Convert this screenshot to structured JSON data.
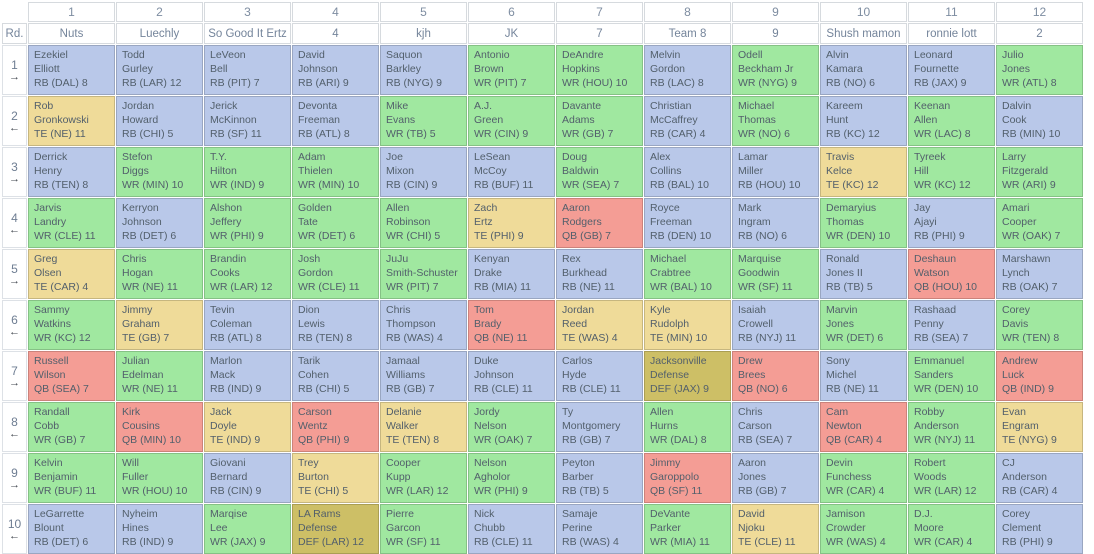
{
  "draft_board": {
    "corner_label": "Rd.",
    "direction_icons": {
      "right": "→",
      "left": "←"
    },
    "position_colors": {
      "RB": "#b9c8e9",
      "WR": "#a0e8a0",
      "TE": "#efdb99",
      "QB": "#f49d95",
      "DEF": "#cdbf66"
    },
    "teams": [
      {
        "slot": "1",
        "name": "Nuts"
      },
      {
        "slot": "2",
        "name": "Luechly"
      },
      {
        "slot": "3",
        "name": "So Good It Ertz"
      },
      {
        "slot": "4",
        "name": "4"
      },
      {
        "slot": "5",
        "name": "kjh"
      },
      {
        "slot": "6",
        "name": "JK"
      },
      {
        "slot": "7",
        "name": "7"
      },
      {
        "slot": "8",
        "name": "Team 8"
      },
      {
        "slot": "9",
        "name": "9"
      },
      {
        "slot": "10",
        "name": "Shush mamon"
      },
      {
        "slot": "11",
        "name": "ronnie lott"
      },
      {
        "slot": "12",
        "name": "2"
      }
    ],
    "rounds": [
      {
        "round": "1",
        "direction": "right",
        "picks": [
          {
            "line1": "Ezekiel",
            "line2": "Elliott",
            "meta": "RB (DAL) 8",
            "pos": "RB"
          },
          {
            "line1": "Todd",
            "line2": "Gurley",
            "meta": "RB (LAR) 12",
            "pos": "RB"
          },
          {
            "line1": "LeVeon",
            "line2": "Bell",
            "meta": "RB (PIT) 7",
            "pos": "RB"
          },
          {
            "line1": "David",
            "line2": "Johnson",
            "meta": "RB (ARI) 9",
            "pos": "RB"
          },
          {
            "line1": "Saquon",
            "line2": "Barkley",
            "meta": "RB (NYG) 9",
            "pos": "RB"
          },
          {
            "line1": "Antonio",
            "line2": "Brown",
            "meta": "WR (PIT) 7",
            "pos": "WR"
          },
          {
            "line1": "DeAndre",
            "line2": "Hopkins",
            "meta": "WR (HOU) 10",
            "pos": "WR"
          },
          {
            "line1": "Melvin",
            "line2": "Gordon",
            "meta": "RB (LAC) 8",
            "pos": "RB"
          },
          {
            "line1": "Odell",
            "line2": "Beckham Jr",
            "meta": "WR (NYG) 9",
            "pos": "WR"
          },
          {
            "line1": "Alvin",
            "line2": "Kamara",
            "meta": "RB (NO) 6",
            "pos": "RB"
          },
          {
            "line1": "Leonard",
            "line2": "Fournette",
            "meta": "RB (JAX) 9",
            "pos": "RB"
          },
          {
            "line1": "Julio",
            "line2": "Jones",
            "meta": "WR (ATL) 8",
            "pos": "WR"
          }
        ]
      },
      {
        "round": "2",
        "direction": "left",
        "picks": [
          {
            "line1": "Rob",
            "line2": "Gronkowski",
            "meta": "TE (NE) 11",
            "pos": "TE"
          },
          {
            "line1": "Jordan",
            "line2": "Howard",
            "meta": "RB (CHI) 5",
            "pos": "RB"
          },
          {
            "line1": "Jerick",
            "line2": "McKinnon",
            "meta": "RB (SF) 11",
            "pos": "RB"
          },
          {
            "line1": "Devonta",
            "line2": "Freeman",
            "meta": "RB (ATL) 8",
            "pos": "RB"
          },
          {
            "line1": "Mike",
            "line2": "Evans",
            "meta": "WR (TB) 5",
            "pos": "WR"
          },
          {
            "line1": "A.J.",
            "line2": "Green",
            "meta": "WR (CIN) 9",
            "pos": "WR"
          },
          {
            "line1": "Davante",
            "line2": "Adams",
            "meta": "WR (GB) 7",
            "pos": "WR"
          },
          {
            "line1": "Christian",
            "line2": "McCaffrey",
            "meta": "RB (CAR) 4",
            "pos": "RB"
          },
          {
            "line1": "Michael",
            "line2": "Thomas",
            "meta": "WR (NO) 6",
            "pos": "WR"
          },
          {
            "line1": "Kareem",
            "line2": "Hunt",
            "meta": "RB (KC) 12",
            "pos": "RB"
          },
          {
            "line1": "Keenan",
            "line2": "Allen",
            "meta": "WR (LAC) 8",
            "pos": "WR"
          },
          {
            "line1": "Dalvin",
            "line2": "Cook",
            "meta": "RB (MIN) 10",
            "pos": "RB"
          }
        ]
      },
      {
        "round": "3",
        "direction": "right",
        "picks": [
          {
            "line1": "Derrick",
            "line2": "Henry",
            "meta": "RB (TEN) 8",
            "pos": "RB"
          },
          {
            "line1": "Stefon",
            "line2": "Diggs",
            "meta": "WR (MIN) 10",
            "pos": "WR"
          },
          {
            "line1": "T.Y.",
            "line2": "Hilton",
            "meta": "WR (IND) 9",
            "pos": "WR"
          },
          {
            "line1": "Adam",
            "line2": "Thielen",
            "meta": "WR (MIN) 10",
            "pos": "WR"
          },
          {
            "line1": "Joe",
            "line2": "Mixon",
            "meta": "RB (CIN) 9",
            "pos": "RB"
          },
          {
            "line1": "LeSean",
            "line2": "McCoy",
            "meta": "RB (BUF) 11",
            "pos": "RB"
          },
          {
            "line1": "Doug",
            "line2": "Baldwin",
            "meta": "WR (SEA) 7",
            "pos": "WR"
          },
          {
            "line1": "Alex",
            "line2": "Collins",
            "meta": "RB (BAL) 10",
            "pos": "RB"
          },
          {
            "line1": "Lamar",
            "line2": "Miller",
            "meta": "RB (HOU) 10",
            "pos": "RB"
          },
          {
            "line1": "Travis",
            "line2": "Kelce",
            "meta": "TE (KC) 12",
            "pos": "TE"
          },
          {
            "line1": "Tyreek",
            "line2": "Hill",
            "meta": "WR (KC) 12",
            "pos": "WR"
          },
          {
            "line1": "Larry",
            "line2": "Fitzgerald",
            "meta": "WR (ARI) 9",
            "pos": "WR"
          }
        ]
      },
      {
        "round": "4",
        "direction": "left",
        "picks": [
          {
            "line1": "Jarvis",
            "line2": "Landry",
            "meta": "WR (CLE) 11",
            "pos": "WR"
          },
          {
            "line1": "Kerryon",
            "line2": "Johnson",
            "meta": "RB (DET) 6",
            "pos": "RB"
          },
          {
            "line1": "Alshon",
            "line2": "Jeffery",
            "meta": "WR (PHI) 9",
            "pos": "WR"
          },
          {
            "line1": "Golden",
            "line2": "Tate",
            "meta": "WR (DET) 6",
            "pos": "WR"
          },
          {
            "line1": "Allen",
            "line2": "Robinson",
            "meta": "WR (CHI) 5",
            "pos": "WR"
          },
          {
            "line1": "Zach",
            "line2": "Ertz",
            "meta": "TE (PHI) 9",
            "pos": "TE"
          },
          {
            "line1": "Aaron",
            "line2": "Rodgers",
            "meta": "QB (GB) 7",
            "pos": "QB"
          },
          {
            "line1": "Royce",
            "line2": "Freeman",
            "meta": "RB (DEN) 10",
            "pos": "RB"
          },
          {
            "line1": "Mark",
            "line2": "Ingram",
            "meta": "RB (NO) 6",
            "pos": "RB"
          },
          {
            "line1": "Demaryius",
            "line2": "Thomas",
            "meta": "WR (DEN) 10",
            "pos": "WR"
          },
          {
            "line1": "Jay",
            "line2": "Ajayi",
            "meta": "RB (PHI) 9",
            "pos": "RB"
          },
          {
            "line1": "Amari",
            "line2": "Cooper",
            "meta": "WR (OAK) 7",
            "pos": "WR"
          }
        ]
      },
      {
        "round": "5",
        "direction": "right",
        "picks": [
          {
            "line1": "Greg",
            "line2": "Olsen",
            "meta": "TE (CAR) 4",
            "pos": "TE"
          },
          {
            "line1": "Chris",
            "line2": "Hogan",
            "meta": "WR (NE) 11",
            "pos": "WR"
          },
          {
            "line1": "Brandin",
            "line2": "Cooks",
            "meta": "WR (LAR) 12",
            "pos": "WR"
          },
          {
            "line1": "Josh",
            "line2": "Gordon",
            "meta": "WR (CLE) 11",
            "pos": "WR"
          },
          {
            "line1": "JuJu",
            "line2": "Smith-Schuster",
            "meta": "WR (PIT) 7",
            "pos": "WR"
          },
          {
            "line1": "Kenyan",
            "line2": "Drake",
            "meta": "RB (MIA) 11",
            "pos": "RB"
          },
          {
            "line1": "Rex",
            "line2": "Burkhead",
            "meta": "RB (NE) 11",
            "pos": "RB"
          },
          {
            "line1": "Michael",
            "line2": "Crabtree",
            "meta": "WR (BAL) 10",
            "pos": "WR"
          },
          {
            "line1": "Marquise",
            "line2": "Goodwin",
            "meta": "WR (SF) 11",
            "pos": "WR"
          },
          {
            "line1": "Ronald",
            "line2": "Jones II",
            "meta": "RB (TB) 5",
            "pos": "RB"
          },
          {
            "line1": "Deshaun",
            "line2": "Watson",
            "meta": "QB (HOU) 10",
            "pos": "QB"
          },
          {
            "line1": "Marshawn",
            "line2": "Lynch",
            "meta": "RB (OAK) 7",
            "pos": "RB"
          }
        ]
      },
      {
        "round": "6",
        "direction": "left",
        "picks": [
          {
            "line1": "Sammy",
            "line2": "Watkins",
            "meta": "WR (KC) 12",
            "pos": "WR"
          },
          {
            "line1": "Jimmy",
            "line2": "Graham",
            "meta": "TE (GB) 7",
            "pos": "TE"
          },
          {
            "line1": "Tevin",
            "line2": "Coleman",
            "meta": "RB (ATL) 8",
            "pos": "RB"
          },
          {
            "line1": "Dion",
            "line2": "Lewis",
            "meta": "RB (TEN) 8",
            "pos": "RB"
          },
          {
            "line1": "Chris",
            "line2": "Thompson",
            "meta": "RB (WAS) 4",
            "pos": "RB"
          },
          {
            "line1": "Tom",
            "line2": "Brady",
            "meta": "QB (NE) 11",
            "pos": "QB"
          },
          {
            "line1": "Jordan",
            "line2": "Reed",
            "meta": "TE (WAS) 4",
            "pos": "TE"
          },
          {
            "line1": "Kyle",
            "line2": "Rudolph",
            "meta": "TE (MIN) 10",
            "pos": "TE"
          },
          {
            "line1": "Isaiah",
            "line2": "Crowell",
            "meta": "RB (NYJ) 11",
            "pos": "RB"
          },
          {
            "line1": "Marvin",
            "line2": "Jones",
            "meta": "WR (DET) 6",
            "pos": "WR"
          },
          {
            "line1": "Rashaad",
            "line2": "Penny",
            "meta": "RB (SEA) 7",
            "pos": "RB"
          },
          {
            "line1": "Corey",
            "line2": "Davis",
            "meta": "WR (TEN) 8",
            "pos": "WR"
          }
        ]
      },
      {
        "round": "7",
        "direction": "right",
        "picks": [
          {
            "line1": "Russell",
            "line2": "Wilson",
            "meta": "QB (SEA) 7",
            "pos": "QB"
          },
          {
            "line1": "Julian",
            "line2": "Edelman",
            "meta": "WR (NE) 11",
            "pos": "WR"
          },
          {
            "line1": "Marlon",
            "line2": "Mack",
            "meta": "RB (IND) 9",
            "pos": "RB"
          },
          {
            "line1": "Tarik",
            "line2": "Cohen",
            "meta": "RB (CHI) 5",
            "pos": "RB"
          },
          {
            "line1": "Jamaal",
            "line2": "Williams",
            "meta": "RB (GB) 7",
            "pos": "RB"
          },
          {
            "line1": "Duke",
            "line2": "Johnson",
            "meta": "RB (CLE) 11",
            "pos": "RB"
          },
          {
            "line1": "Carlos",
            "line2": "Hyde",
            "meta": "RB (CLE) 11",
            "pos": "RB"
          },
          {
            "line1": "Jacksonville",
            "line2": "Defense",
            "meta": "DEF (JAX) 9",
            "pos": "DEF"
          },
          {
            "line1": "Drew",
            "line2": "Brees",
            "meta": "QB (NO) 6",
            "pos": "QB"
          },
          {
            "line1": "Sony",
            "line2": "Michel",
            "meta": "RB (NE) 11",
            "pos": "RB"
          },
          {
            "line1": "Emmanuel",
            "line2": "Sanders",
            "meta": "WR (DEN) 10",
            "pos": "WR"
          },
          {
            "line1": "Andrew",
            "line2": "Luck",
            "meta": "QB (IND) 9",
            "pos": "QB"
          }
        ]
      },
      {
        "round": "8",
        "direction": "left",
        "picks": [
          {
            "line1": "Randall",
            "line2": "Cobb",
            "meta": "WR (GB) 7",
            "pos": "WR"
          },
          {
            "line1": "Kirk",
            "line2": "Cousins",
            "meta": "QB (MIN) 10",
            "pos": "QB"
          },
          {
            "line1": "Jack",
            "line2": "Doyle",
            "meta": "TE (IND) 9",
            "pos": "TE"
          },
          {
            "line1": "Carson",
            "line2": "Wentz",
            "meta": "QB (PHI) 9",
            "pos": "QB"
          },
          {
            "line1": "Delanie",
            "line2": "Walker",
            "meta": "TE (TEN) 8",
            "pos": "TE"
          },
          {
            "line1": "Jordy",
            "line2": "Nelson",
            "meta": "WR (OAK) 7",
            "pos": "WR"
          },
          {
            "line1": "Ty",
            "line2": "Montgomery",
            "meta": "RB (GB) 7",
            "pos": "RB"
          },
          {
            "line1": "Allen",
            "line2": "Hurns",
            "meta": "WR (DAL) 8",
            "pos": "WR"
          },
          {
            "line1": "Chris",
            "line2": "Carson",
            "meta": "RB (SEA) 7",
            "pos": "RB"
          },
          {
            "line1": "Cam",
            "line2": "Newton",
            "meta": "QB (CAR) 4",
            "pos": "QB"
          },
          {
            "line1": "Robby",
            "line2": "Anderson",
            "meta": "WR (NYJ) 11",
            "pos": "WR"
          },
          {
            "line1": "Evan",
            "line2": "Engram",
            "meta": "TE (NYG) 9",
            "pos": "TE"
          }
        ]
      },
      {
        "round": "9",
        "direction": "right",
        "picks": [
          {
            "line1": "Kelvin",
            "line2": "Benjamin",
            "meta": "WR (BUF) 11",
            "pos": "WR"
          },
          {
            "line1": "Will",
            "line2": "Fuller",
            "meta": "WR (HOU) 10",
            "pos": "WR"
          },
          {
            "line1": "Giovani",
            "line2": "Bernard",
            "meta": "RB (CIN) 9",
            "pos": "RB"
          },
          {
            "line1": "Trey",
            "line2": "Burton",
            "meta": "TE (CHI) 5",
            "pos": "TE"
          },
          {
            "line1": "Cooper",
            "line2": "Kupp",
            "meta": "WR (LAR) 12",
            "pos": "WR"
          },
          {
            "line1": "Nelson",
            "line2": "Agholor",
            "meta": "WR (PHI) 9",
            "pos": "WR"
          },
          {
            "line1": "Peyton",
            "line2": "Barber",
            "meta": "RB (TB) 5",
            "pos": "RB"
          },
          {
            "line1": "Jimmy",
            "line2": "Garoppolo",
            "meta": "QB (SF) 11",
            "pos": "QB"
          },
          {
            "line1": "Aaron",
            "line2": "Jones",
            "meta": "RB (GB) 7",
            "pos": "RB"
          },
          {
            "line1": "Devin",
            "line2": "Funchess",
            "meta": "WR (CAR) 4",
            "pos": "WR"
          },
          {
            "line1": "Robert",
            "line2": "Woods",
            "meta": "WR (LAR) 12",
            "pos": "WR"
          },
          {
            "line1": "CJ",
            "line2": "Anderson",
            "meta": "RB (CAR) 4",
            "pos": "RB"
          }
        ]
      },
      {
        "round": "10",
        "direction": "left",
        "picks": [
          {
            "line1": "LeGarrette",
            "line2": "Blount",
            "meta": "RB (DET) 6",
            "pos": "RB"
          },
          {
            "line1": "Nyheim",
            "line2": "Hines",
            "meta": "RB (IND) 9",
            "pos": "RB"
          },
          {
            "line1": "Marqise",
            "line2": "Lee",
            "meta": "WR (JAX) 9",
            "pos": "WR"
          },
          {
            "line1": "LA Rams",
            "line2": "Defense",
            "meta": "DEF (LAR) 12",
            "pos": "DEF"
          },
          {
            "line1": "Pierre",
            "line2": "Garcon",
            "meta": "WR (SF) 11",
            "pos": "WR"
          },
          {
            "line1": "Nick",
            "line2": "Chubb",
            "meta": "RB (CLE) 11",
            "pos": "RB"
          },
          {
            "line1": "Samaje",
            "line2": "Perine",
            "meta": "RB (WAS) 4",
            "pos": "RB"
          },
          {
            "line1": "DeVante",
            "line2": "Parker",
            "meta": "WR (MIA) 11",
            "pos": "WR"
          },
          {
            "line1": "David",
            "line2": "Njoku",
            "meta": "TE (CLE) 11",
            "pos": "TE"
          },
          {
            "line1": "Jamison",
            "line2": "Crowder",
            "meta": "WR (WAS) 4",
            "pos": "WR"
          },
          {
            "line1": "D.J.",
            "line2": "Moore",
            "meta": "WR (CAR) 4",
            "pos": "WR"
          },
          {
            "line1": "Corey",
            "line2": "Clement",
            "meta": "RB (PHI) 9",
            "pos": "RB"
          }
        ]
      }
    ]
  }
}
